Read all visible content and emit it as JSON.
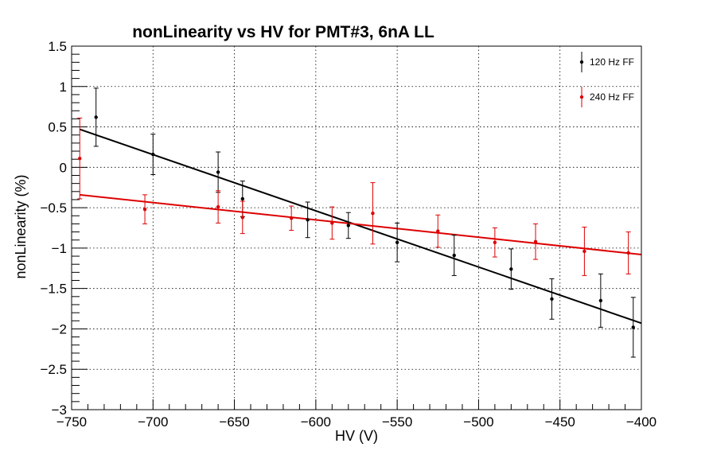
{
  "chart_data": {
    "type": "scatter",
    "title": "nonLinearity vs HV for PMT#3, 6nA LL",
    "xlabel": "HV (V)",
    "ylabel": "nonLinearity (%)",
    "xlim": [
      -750,
      -400
    ],
    "ylim": [
      -3,
      1.5
    ],
    "xticks": [
      -750,
      -700,
      -650,
      -600,
      -550,
      -500,
      -450,
      -400
    ],
    "xtick_labels": [
      "−750",
      "−700",
      "−650",
      "−600",
      "−550",
      "−500",
      "−450",
      "−400"
    ],
    "yticks": [
      1.5,
      1,
      0.5,
      0,
      -0.5,
      -1,
      -1.5,
      -2,
      -2.5,
      -3
    ],
    "ytick_labels": [
      "1.5",
      "1",
      "0.5",
      "0",
      "−0.5",
      "−1",
      "−1.5",
      "−2",
      "−2.5",
      "−3"
    ],
    "grid": true,
    "legend_position": "top-right",
    "series": [
      {
        "name": "120 Hz FF",
        "color": "#000000",
        "points": [
          {
            "x": -735,
            "y": 0.62,
            "err": 0.36
          },
          {
            "x": -700,
            "y": 0.16,
            "err": 0.25
          },
          {
            "x": -660,
            "y": -0.06,
            "err": 0.25
          },
          {
            "x": -645,
            "y": -0.39,
            "err": 0.22
          },
          {
            "x": -605,
            "y": -0.65,
            "err": 0.22
          },
          {
            "x": -580,
            "y": -0.72,
            "err": 0.16
          },
          {
            "x": -550,
            "y": -0.93,
            "err": 0.24
          },
          {
            "x": -515,
            "y": -1.09,
            "err": 0.25
          },
          {
            "x": -480,
            "y": -1.26,
            "err": 0.25
          },
          {
            "x": -455,
            "y": -1.63,
            "err": 0.25
          },
          {
            "x": -425,
            "y": -1.65,
            "err": 0.33
          },
          {
            "x": -405,
            "y": -1.98,
            "err": 0.37
          }
        ],
        "fit": {
          "x": [
            -745,
            -400
          ],
          "y": [
            0.47,
            -1.93
          ]
        }
      },
      {
        "name": "240 Hz FF",
        "color": "#dd0000",
        "points": [
          {
            "x": -745,
            "y": 0.11,
            "err": 0.5
          },
          {
            "x": -705,
            "y": -0.52,
            "err": 0.18
          },
          {
            "x": -660,
            "y": -0.49,
            "err": 0.2
          },
          {
            "x": -645,
            "y": -0.62,
            "err": 0.2
          },
          {
            "x": -615,
            "y": -0.63,
            "err": 0.15
          },
          {
            "x": -590,
            "y": -0.69,
            "err": 0.2
          },
          {
            "x": -565,
            "y": -0.57,
            "err": 0.38
          },
          {
            "x": -525,
            "y": -0.79,
            "err": 0.2
          },
          {
            "x": -490,
            "y": -0.93,
            "err": 0.18
          },
          {
            "x": -465,
            "y": -0.92,
            "err": 0.22
          },
          {
            "x": -435,
            "y": -1.04,
            "err": 0.3
          },
          {
            "x": -408,
            "y": -1.06,
            "err": 0.26
          }
        ],
        "fit": {
          "x": [
            -745,
            -400
          ],
          "y": [
            -0.34,
            -1.08
          ]
        }
      }
    ]
  }
}
